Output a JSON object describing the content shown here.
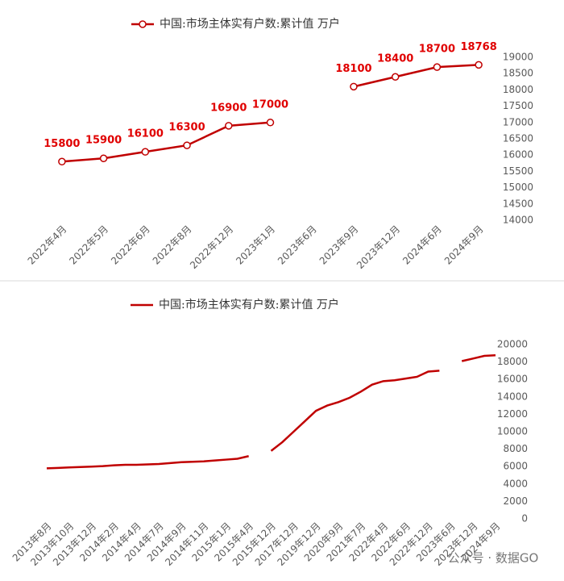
{
  "chart_data": [
    {
      "type": "line",
      "legend": "中国:市场主体实有户数:累计值 万户",
      "categories": [
        "2022年4月",
        "2022年5月",
        "2022年6月",
        "2022年8月",
        "2022年12月",
        "2023年1月",
        "2023年6月",
        "2023年9月",
        "2023年12月",
        "2024年6月",
        "2024年9月"
      ],
      "series": [
        {
          "name": "中国:市场主体实有户数:累计值 万户",
          "color": "#c00000",
          "values": [
            15800,
            15900,
            16100,
            16300,
            16900,
            17000,
            null,
            18100,
            18400,
            18700,
            18768
          ]
        }
      ],
      "ylim": [
        14000,
        19000
      ],
      "yticks": [
        14000,
        14500,
        15000,
        15500,
        16000,
        16500,
        17000,
        17500,
        18000,
        18500,
        19000
      ],
      "y_axis_side": "right",
      "markers": true,
      "data_labels": true,
      "grid": false
    },
    {
      "type": "line",
      "legend": "中国:市场主体实有户数:累计值 万户",
      "categories": [
        "2013年8月",
        null,
        "2013年10月",
        null,
        "2013年12月",
        null,
        "2014年2月",
        null,
        "2014年4月",
        null,
        "2014年7月",
        null,
        "2014年9月",
        null,
        "2014年11月",
        null,
        "2015年1月",
        null,
        "2015年4月",
        null,
        "2015年12月",
        null,
        "2017年12月",
        null,
        "2019年12月",
        null,
        "2020年9月",
        null,
        "2021年7月",
        null,
        "2022年4月",
        null,
        "2022年6月",
        null,
        "2022年12月",
        null,
        "2023年6月",
        null,
        "2023年12月",
        null,
        "2024年9月"
      ],
      "series": [
        {
          "name": "中国:市场主体实有户数:累计值 万户",
          "color": "#c00000",
          "values": [
            5800,
            5850,
            5900,
            5950,
            6000,
            6050,
            6150,
            6200,
            6200,
            6250,
            6300,
            6400,
            6500,
            6550,
            6600,
            6700,
            6800,
            6900,
            7200,
            null,
            7800,
            8800,
            10000,
            11200,
            12400,
            13000,
            13400,
            13900,
            14600,
            15400,
            15800,
            15900,
            16100,
            16300,
            16900,
            17000,
            null,
            18100,
            18400,
            18700,
            18768
          ]
        }
      ],
      "ylim": [
        0,
        20000
      ],
      "yticks": [
        0,
        2000,
        4000,
        6000,
        8000,
        10000,
        12000,
        14000,
        16000,
        18000,
        20000
      ],
      "y_axis_side": "right",
      "markers": false,
      "data_labels": false,
      "grid": false
    }
  ],
  "watermark": "公众号 · 数据GO"
}
